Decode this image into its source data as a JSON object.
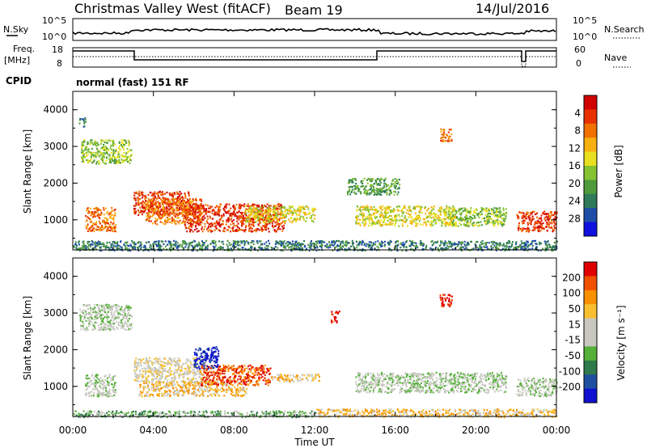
{
  "header": {
    "station": "Christmas Valley West (fitACF)",
    "beam": "Beam 19",
    "date": "14/Jul/2016"
  },
  "noise_panel": {
    "left_label": "N.Sky",
    "left_ticks": [
      "10^5",
      "10^0"
    ],
    "right_ticks": [
      "10^5",
      "10^0"
    ],
    "right_label": "N.Search"
  },
  "freq_panel": {
    "left_label_1": "Freq.",
    "left_label_2": "[MHz]",
    "left_ticks": [
      "18",
      "8"
    ],
    "right_ticks": [
      "60",
      "0"
    ],
    "right_label": "Nave"
  },
  "cpid": {
    "label": "CPID",
    "value": "normal (fast) 151 RF"
  },
  "x_axis": {
    "label": "Time UT",
    "ticks": [
      "00:00",
      "04:00",
      "08:00",
      "12:00",
      "16:00",
      "20:00",
      "00:00"
    ]
  },
  "chart_data": [
    {
      "type": "heatmap",
      "title": "",
      "xlabel": "Time UT",
      "ylabel": "Slant Range [km]",
      "xlim_hours": [
        0,
        24
      ],
      "ylim_km": [
        180,
        4500
      ],
      "y_ticks": [
        "1000",
        "2000",
        "3000",
        "4000"
      ],
      "colorbar": {
        "label": "Power [dB]",
        "ticks": [
          "4",
          "8",
          "12",
          "16",
          "20",
          "24",
          "28"
        ],
        "colors": [
          "#1010e0",
          "#1e4da8",
          "#2e7a5a",
          "#4f9a3c",
          "#86c232",
          "#e8e020",
          "#f8b010",
          "#f07000",
          "#e83000",
          "#d00000"
        ]
      },
      "echo_regions": [
        {
          "t0": 0.3,
          "t1": 0.6,
          "r0": 3550,
          "r1": 3800,
          "level": 2
        },
        {
          "t0": 0.4,
          "t1": 2.9,
          "r0": 2550,
          "r1": 3200,
          "level": 4
        },
        {
          "t0": 0.6,
          "t1": 2.1,
          "r0": 700,
          "r1": 1350,
          "level": 7
        },
        {
          "t0": 3.0,
          "t1": 5.8,
          "r0": 1150,
          "r1": 1800,
          "level": 8
        },
        {
          "t0": 3.6,
          "t1": 6.4,
          "r0": 900,
          "r1": 1600,
          "level": 7
        },
        {
          "t0": 5.5,
          "t1": 10.5,
          "r0": 700,
          "r1": 1450,
          "level": 8
        },
        {
          "t0": 8.5,
          "t1": 12.0,
          "r0": 950,
          "r1": 1400,
          "level": 5
        },
        {
          "t0": 13.6,
          "t1": 16.2,
          "r0": 1700,
          "r1": 2150,
          "level": 3
        },
        {
          "t0": 14.0,
          "t1": 19.0,
          "r0": 850,
          "r1": 1400,
          "level": 5
        },
        {
          "t0": 18.2,
          "t1": 18.8,
          "r0": 3150,
          "r1": 3500,
          "level": 7
        },
        {
          "t0": 18.6,
          "t1": 21.5,
          "r0": 850,
          "r1": 1350,
          "level": 4
        },
        {
          "t0": 22.0,
          "t1": 24.0,
          "r0": 700,
          "r1": 1250,
          "level": 8
        },
        {
          "t0": 0.0,
          "t1": 24.0,
          "r0": 180,
          "r1": 450,
          "level": 2
        }
      ]
    },
    {
      "type": "heatmap",
      "title": "",
      "xlabel": "Time UT",
      "ylabel": "Slant Range [km]",
      "xlim_hours": [
        0,
        24
      ],
      "ylim_km": [
        180,
        4500
      ],
      "y_ticks": [
        "1000",
        "2000",
        "3000",
        "4000"
      ],
      "colorbar": {
        "label": "Velocity [m s⁻¹]",
        "ticks": [
          "200",
          "100",
          "50",
          "15",
          "-15",
          "-50",
          "-100",
          "-200"
        ],
        "colors": [
          "#1010d0",
          "#1f4fa0",
          "#2e7a4a",
          "#54b038",
          "#c8c8c0",
          "#c8c8c0",
          "#f8c030",
          "#f89000",
          "#f05000",
          "#e00000"
        ]
      },
      "echo_regions": [
        {
          "t0": 0.3,
          "t1": 2.9,
          "r0": 2550,
          "r1": 3250,
          "level": 4
        },
        {
          "t0": 0.6,
          "t1": 2.1,
          "r0": 750,
          "r1": 1350,
          "level": 4
        },
        {
          "t0": 3.0,
          "t1": 6.6,
          "r0": 1150,
          "r1": 1800,
          "level": 5
        },
        {
          "t0": 3.2,
          "t1": 8.6,
          "r0": 750,
          "r1": 1150,
          "level": 6
        },
        {
          "t0": 6.3,
          "t1": 9.8,
          "r0": 1050,
          "r1": 1600,
          "level": 8
        },
        {
          "t0": 6.0,
          "t1": 7.2,
          "r0": 1500,
          "r1": 2100,
          "level": 0
        },
        {
          "t0": 9.8,
          "t1": 12.2,
          "r0": 1150,
          "r1": 1350,
          "level": 6
        },
        {
          "t0": 14.0,
          "t1": 21.5,
          "r0": 850,
          "r1": 1400,
          "level": 4
        },
        {
          "t0": 18.2,
          "t1": 18.8,
          "r0": 3200,
          "r1": 3550,
          "level": 9
        },
        {
          "t0": 12.8,
          "t1": 13.2,
          "r0": 2750,
          "r1": 3100,
          "level": 9
        },
        {
          "t0": 22.0,
          "t1": 24.0,
          "r0": 750,
          "r1": 1250,
          "level": 4
        },
        {
          "t0": 12.0,
          "t1": 24.0,
          "r0": 180,
          "r1": 400,
          "level": 6
        },
        {
          "t0": 0.0,
          "t1": 12.0,
          "r0": 180,
          "r1": 350,
          "level": 3
        }
      ]
    }
  ]
}
